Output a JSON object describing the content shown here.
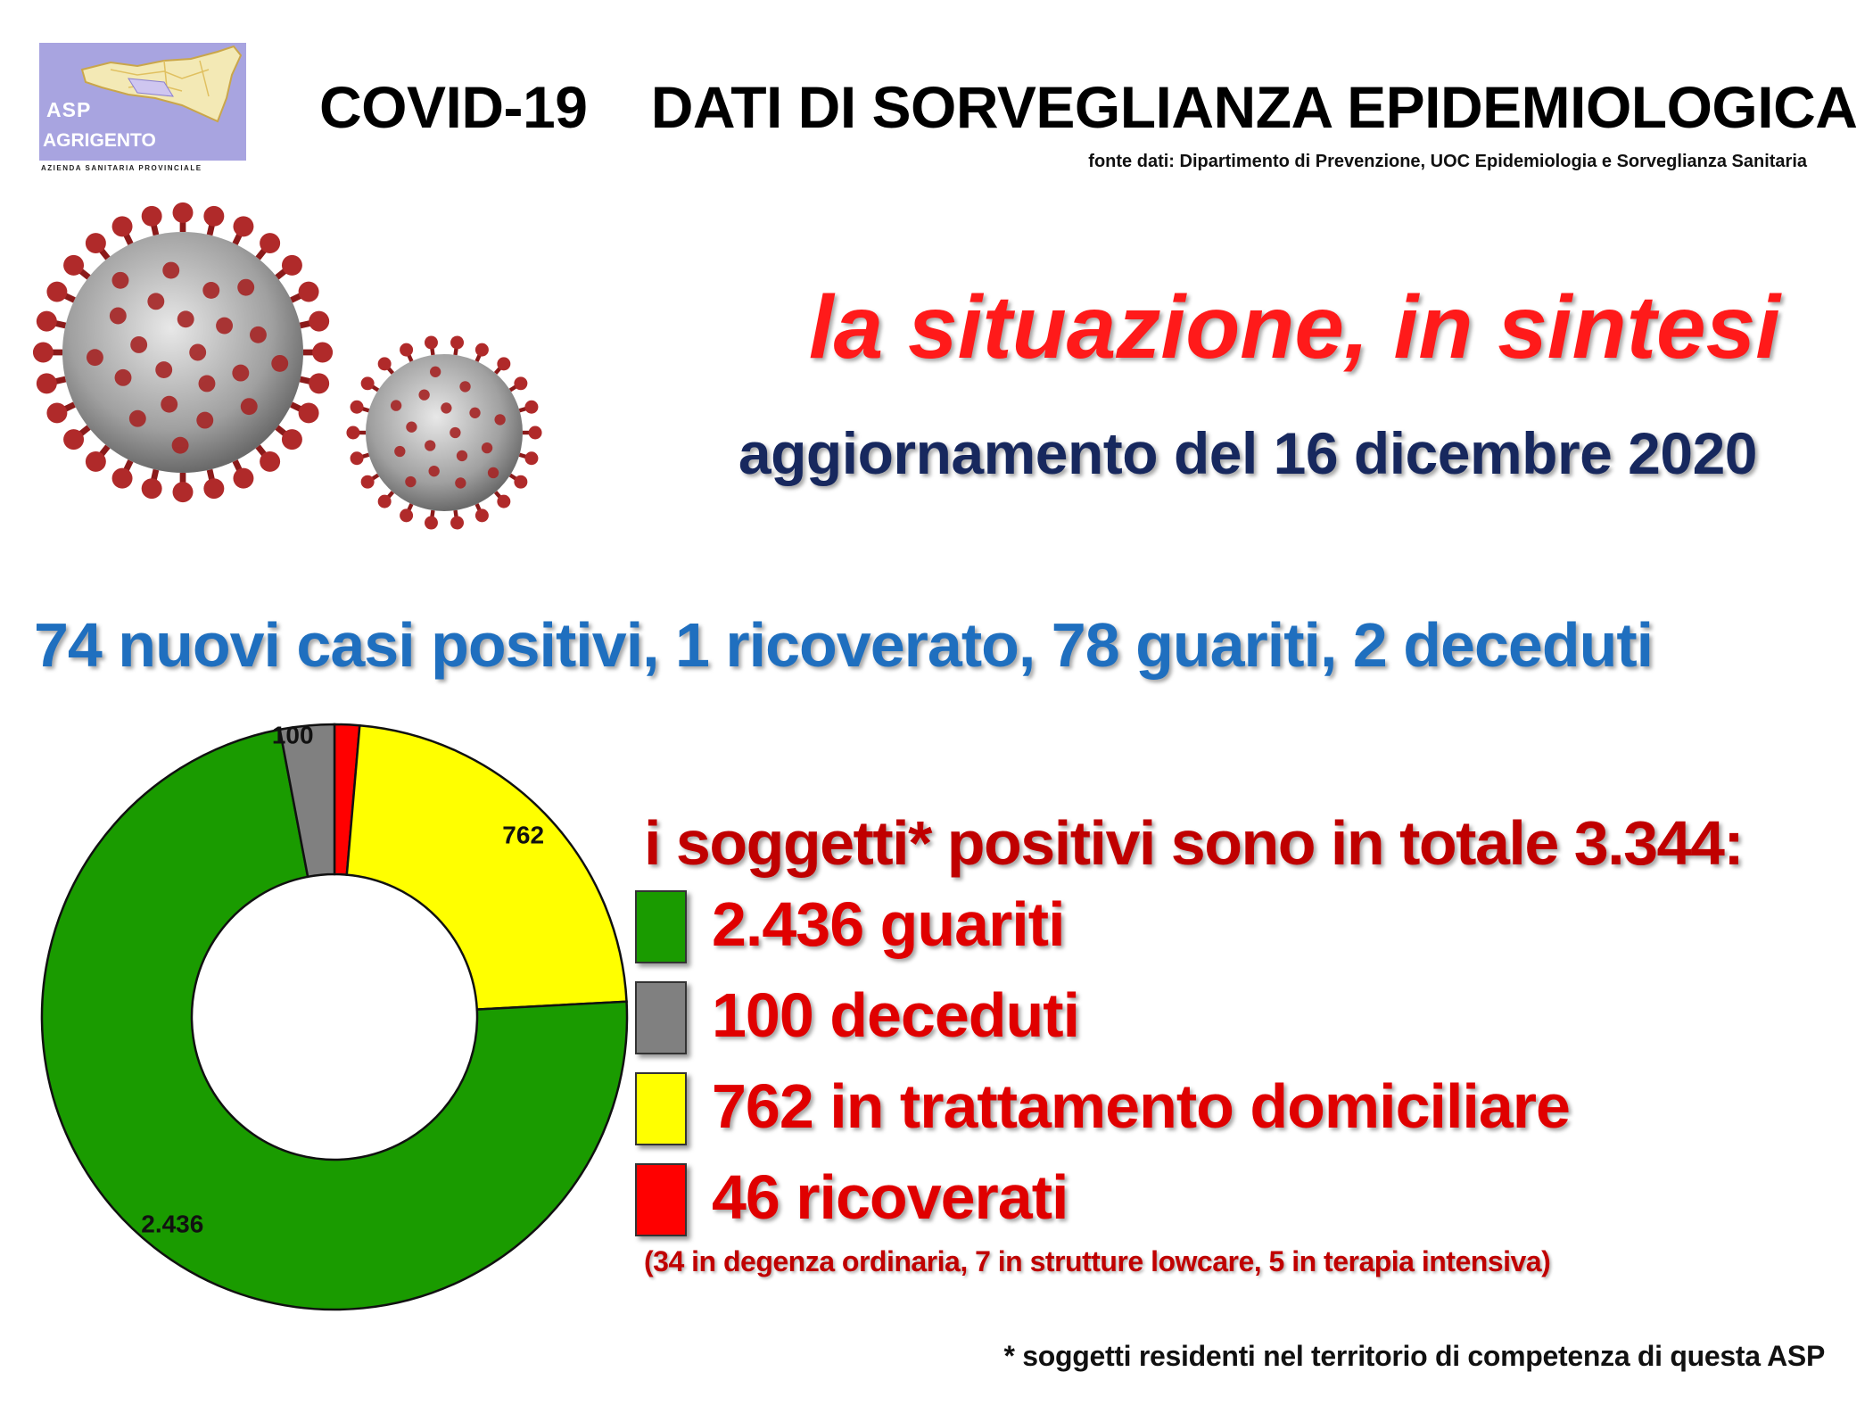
{
  "logo": {
    "asp": "ASP",
    "city": "AGRIGENTO",
    "subtitle": "AZIENDA SANITARIA PROVINCIALE"
  },
  "header": {
    "title": "COVID-19    DATI DI SORVEGLIANZA EPIDEMIOLOGICA",
    "source": "fonte dati: Dipartimento di Prevenzione, UOC Epidemiologia e Sorveglianza Sanitaria"
  },
  "subtitle": "la situazione, in sintesi",
  "update": "aggiornamento del 16 dicembre 2020",
  "headline": "74 nuovi casi positivi, 1 ricoverato, 78 guariti, 2 deceduti",
  "summary": {
    "total": "i soggetti* positivi sono in totale 3.344:",
    "legend": [
      {
        "text": "2.436 guariti",
        "color": "#1a9b00"
      },
      {
        "text": "100 deceduti",
        "color": "#808080"
      },
      {
        "text": "762 in trattamento domiciliare",
        "color": "#ffff00"
      },
      {
        "text": "46 ricoverati",
        "color": "#ff0000"
      }
    ],
    "detail": "(34 in degenza ordinaria, 7 in strutture lowcare, 5 in terapia intensiva)"
  },
  "footnote": "* soggetti residenti nel territorio di competenza di questa ASP",
  "chart_data": {
    "type": "pie",
    "style": "donut",
    "categories": [
      "guariti",
      "deceduti",
      "in trattamento domiciliare",
      "ricoverati"
    ],
    "values": [
      2436,
      100,
      762,
      46
    ],
    "labels": [
      "2.436",
      "100",
      "762",
      "46"
    ],
    "colors": [
      "#1a9b00",
      "#808080",
      "#ffff00",
      "#ff0000"
    ],
    "start_angle_deg": 0,
    "direction": "counterclockwise-from-top"
  }
}
